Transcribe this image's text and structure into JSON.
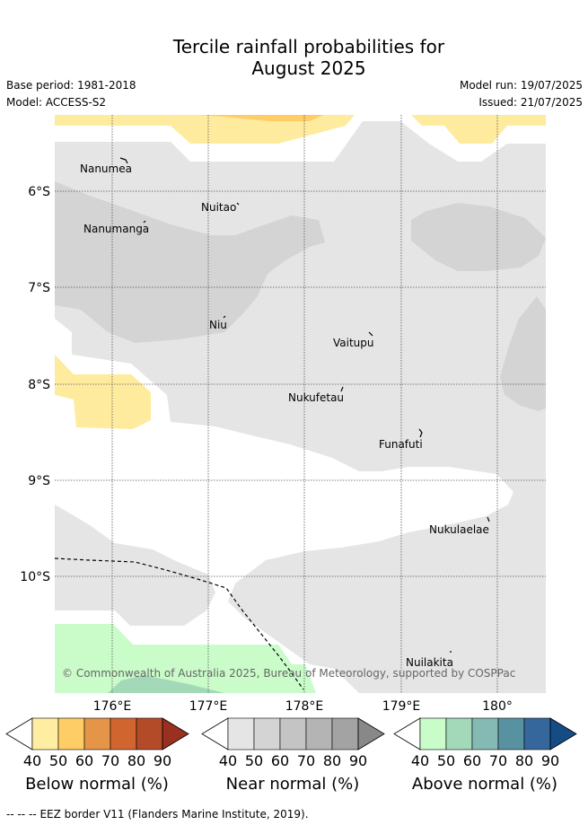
{
  "header": {
    "title_line1": "Tercile rainfall probabilities for",
    "title_line2": "August 2025",
    "base_period": "Base period: 1981-2018",
    "model": "Model: ACCESS-S2",
    "model_run": "Model run: 19/07/2025",
    "issued": "Issued: 21/07/2025"
  },
  "map": {
    "lat_labels": [
      "6°S",
      "7°S",
      "8°S",
      "9°S",
      "10°S"
    ],
    "lon_labels": [
      "176°E",
      "177°E",
      "178°E",
      "179°E",
      "180°"
    ],
    "places": [
      {
        "name": "Nanumea"
      },
      {
        "name": "Nuitao"
      },
      {
        "name": "Nanumanga"
      },
      {
        "name": "Niu"
      },
      {
        "name": "Vaitupu"
      },
      {
        "name": "Nukufetau"
      },
      {
        "name": "Funafuti"
      },
      {
        "name": "Nukulaelae"
      },
      {
        "name": "Nuilakita"
      }
    ],
    "copyright": "© Commonwealth of Australia 2025, Bureau of Meteorology, supported by COSPPac",
    "colors": {
      "near_40": "#e5e5e5",
      "near_50": "#d4d4d4",
      "below_40": "#ffeb9e",
      "below_50": "#ffcc66",
      "above_40": "#c9fcc9",
      "above_50": "#a3d9b9"
    }
  },
  "colorbars": [
    {
      "label": "Below normal (%)",
      "ticks": [
        "40",
        "50",
        "60",
        "70",
        "80",
        "90"
      ],
      "colors": [
        "#ffeea2",
        "#ffcd66",
        "#e49547",
        "#d06530",
        "#b34a28",
        "#9a3020"
      ]
    },
    {
      "label": "Near normal (%)",
      "ticks": [
        "40",
        "50",
        "60",
        "70",
        "80",
        "90"
      ],
      "colors": [
        "#e5e5e5",
        "#d4d4d4",
        "#c4c4c4",
        "#b4b4b4",
        "#a3a3a3",
        "#888888"
      ]
    },
    {
      "label": "Above normal (%)",
      "ticks": [
        "40",
        "50",
        "60",
        "70",
        "80",
        "90"
      ],
      "colors": [
        "#c9fcc9",
        "#a3d9b9",
        "#84bab3",
        "#5892a0",
        "#35679c",
        "#154c86"
      ]
    }
  ],
  "footer": {
    "legend_symbol": "-- -- --",
    "legend_text": "EEZ border V11 (Flanders Marine Institute, 2019)."
  }
}
